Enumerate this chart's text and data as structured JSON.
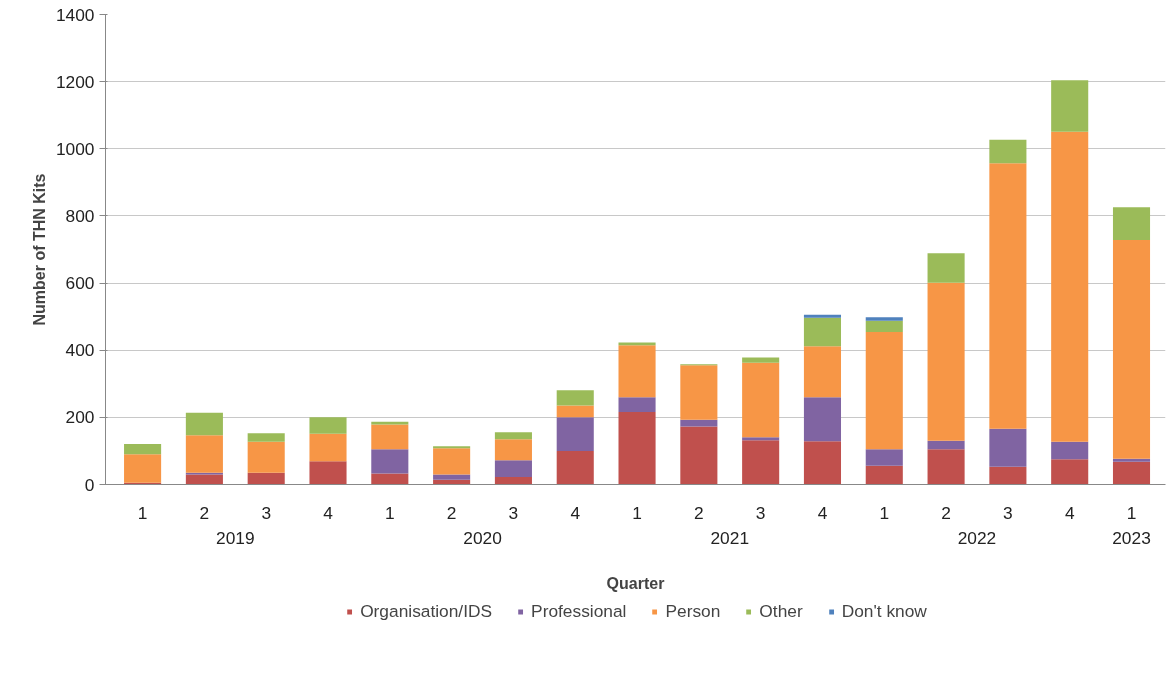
{
  "chart_data": {
    "type": "bar",
    "stacked": true,
    "xlabel": "Quarter",
    "ylabel": "Number of THN Kits",
    "categories": [
      "1",
      "2",
      "3",
      "4",
      "1",
      "2",
      "3",
      "4",
      "1",
      "2",
      "3",
      "4",
      "1",
      "2",
      "3",
      "4",
      "1"
    ],
    "annotations": [
      "2019",
      "2020",
      "2021",
      "2022",
      "2023"
    ],
    "series": [
      {
        "name": "Organisation/IDS",
        "color": "#c0504d",
        "values": [
          5,
          30,
          35,
          69,
          33,
          14,
          22,
          100,
          216,
          173,
          132,
          129,
          56,
          105,
          53,
          75,
          68
        ]
      },
      {
        "name": "Professional",
        "color": "#8064a2",
        "values": [
          null,
          5,
          null,
          null,
          72,
          16,
          50,
          100,
          44,
          20,
          9,
          131,
          49,
          25,
          113,
          52,
          9
        ]
      },
      {
        "name": "Person",
        "color": "#f79646",
        "values": [
          85,
          112,
          92,
          82,
          74,
          78,
          63,
          35,
          155,
          162,
          222,
          152,
          349,
          471,
          791,
          924,
          651
        ]
      },
      {
        "name": "Other",
        "color": "#9bbb59",
        "values": [
          31,
          67,
          26,
          49,
          8,
          6,
          21,
          46,
          8,
          3,
          15,
          85,
          34,
          88,
          70,
          153,
          98
        ]
      },
      {
        "name": "Don't know",
        "color": "#4f81bd",
        "values": [
          null,
          null,
          null,
          null,
          null,
          null,
          null,
          null,
          null,
          null,
          null,
          9,
          10,
          null,
          null,
          null,
          null
        ]
      }
    ],
    "ylim": [
      0,
      1400
    ],
    "yticks": [
      0,
      200,
      400,
      600,
      800,
      1000,
      1200,
      1400
    ],
    "grid": "y",
    "legend": "bottom"
  }
}
